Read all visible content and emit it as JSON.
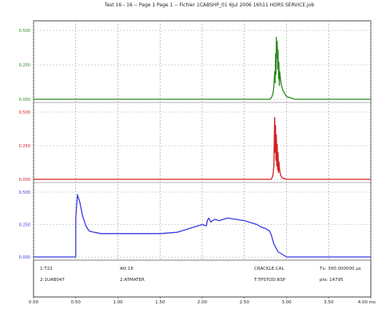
{
  "header": {
    "title": "Test 16 - 16 -- Page 1 Page 1 -- Fichier 1CABSHP_01 6Jul 2006 16h11 HORS SERVICE.job"
  },
  "chart_data": {
    "type": "line",
    "title": "Test 16 - 16 -- Page 1 Page 1 -- Fichier 1CABSHP_01 6Jul 2006 16h11 HORS SERVICE.job",
    "xlabel": "",
    "x_ticks": [
      "0.00",
      "0.50",
      "1.00",
      "1.50",
      "2.00",
      "2.50",
      "3.00",
      "3.50",
      "4.00 ms"
    ],
    "xlim": [
      0,
      4.0
    ],
    "grid": true,
    "panels": [
      {
        "name": "green",
        "color": "#2e8b22",
        "tick_color": "#2e8b22",
        "y_ticks": [
          "0.500",
          "0.250",
          "0.000"
        ],
        "ylim": [
          0,
          0.5
        ],
        "series": {
          "x": [
            0,
            2.8,
            2.82,
            2.84,
            2.85,
            2.86,
            2.865,
            2.87,
            2.875,
            2.88,
            2.885,
            2.89,
            2.895,
            2.9,
            2.905,
            2.91,
            2.915,
            2.92,
            2.93,
            2.94,
            2.96,
            2.98,
            3.0,
            3.05,
            3.1,
            4.0
          ],
          "y": [
            0,
            0,
            0.01,
            0.04,
            0.09,
            0.2,
            0.12,
            0.33,
            0.18,
            0.45,
            0.3,
            0.42,
            0.22,
            0.36,
            0.15,
            0.27,
            0.1,
            0.2,
            0.14,
            0.1,
            0.06,
            0.04,
            0.02,
            0.01,
            0,
            0
          ]
        }
      },
      {
        "name": "red",
        "color": "#d42020",
        "tick_color": "#d42020",
        "y_ticks": [
          "0.500",
          "0.250",
          "0.000"
        ],
        "ylim": [
          0,
          0.5
        ],
        "series": {
          "x": [
            0,
            2.82,
            2.84,
            2.85,
            2.855,
            2.86,
            2.865,
            2.87,
            2.875,
            2.88,
            2.885,
            2.89,
            2.895,
            2.9,
            2.905,
            2.91,
            2.92,
            2.93,
            2.95,
            3.0,
            4.0
          ],
          "y": [
            0,
            0,
            0.03,
            0.1,
            0.3,
            0.46,
            0.2,
            0.4,
            0.14,
            0.33,
            0.1,
            0.26,
            0.07,
            0.2,
            0.05,
            0.13,
            0.06,
            0.03,
            0.01,
            0,
            0
          ]
        }
      },
      {
        "name": "blue",
        "color": "#3a3ae0",
        "tick_color": "#3a3ae0",
        "y_ticks": [
          "0.500",
          "0.250",
          "0.000"
        ],
        "ylim": [
          0,
          0.5
        ],
        "series": {
          "x": [
            0,
            0.5,
            0.5,
            0.52,
            0.55,
            0.58,
            0.62,
            0.66,
            0.72,
            0.8,
            1.0,
            1.5,
            1.7,
            1.8,
            1.9,
            2.0,
            2.05,
            2.06,
            2.08,
            2.1,
            2.15,
            2.2,
            2.3,
            2.4,
            2.5,
            2.6,
            2.65,
            2.7,
            2.75,
            2.8,
            2.82,
            2.85,
            2.9,
            3.0,
            4.0
          ],
          "y": [
            0,
            0,
            0.3,
            0.48,
            0.42,
            0.32,
            0.24,
            0.2,
            0.19,
            0.18,
            0.18,
            0.18,
            0.19,
            0.21,
            0.23,
            0.25,
            0.24,
            0.28,
            0.3,
            0.27,
            0.29,
            0.28,
            0.3,
            0.29,
            0.28,
            0.26,
            0.25,
            0.23,
            0.22,
            0.2,
            0.17,
            0.1,
            0.04,
            0,
            0
          ]
        }
      }
    ],
    "annotations": {
      "row1": [
        "1:T22",
        "Att:16",
        "CRACKLE.CAL",
        "Tx: 300.000000 µs"
      ],
      "row2": [
        "2:1UAB047",
        "2:ATMATER",
        "T:TPSTOD.RSP",
        "pts: 14795"
      ]
    }
  }
}
